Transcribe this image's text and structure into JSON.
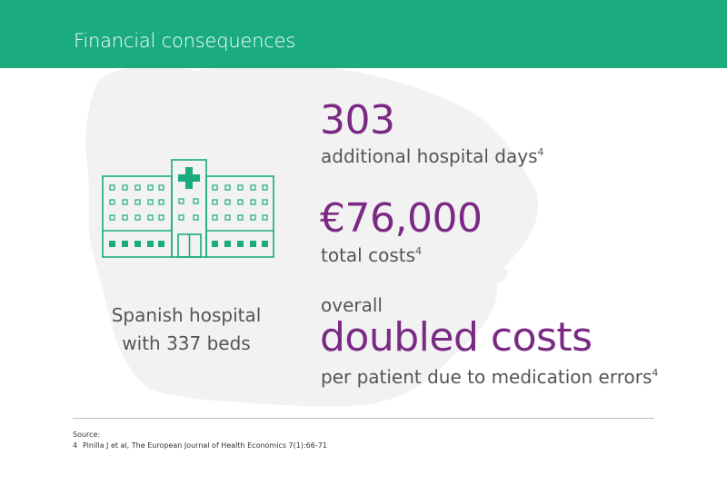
{
  "header": {
    "title": "Financial consequences"
  },
  "hospital": {
    "caption_line1": "Spanish hospital",
    "caption_line2": "with 337 beds"
  },
  "stats": {
    "days_value": "303",
    "days_label": "additional hospital days",
    "days_ref": "4",
    "cost_value": "€76,000",
    "cost_label": "total costs",
    "cost_ref": "4",
    "overall_label": "overall",
    "doubled_value": "doubled costs",
    "doubled_label": "per patient due to medication errors",
    "doubled_ref": "4"
  },
  "source": {
    "label": "Source:",
    "ref_number": "4",
    "citation": "Pinilla J et al, The European Journal of Health Economics 7(1):66-71"
  },
  "colors": {
    "header_bg": "#1aab7f",
    "accent_purple": "#7b2a84",
    "hospital_green": "#1aab7f",
    "map_gray": "#f2f2f2"
  }
}
